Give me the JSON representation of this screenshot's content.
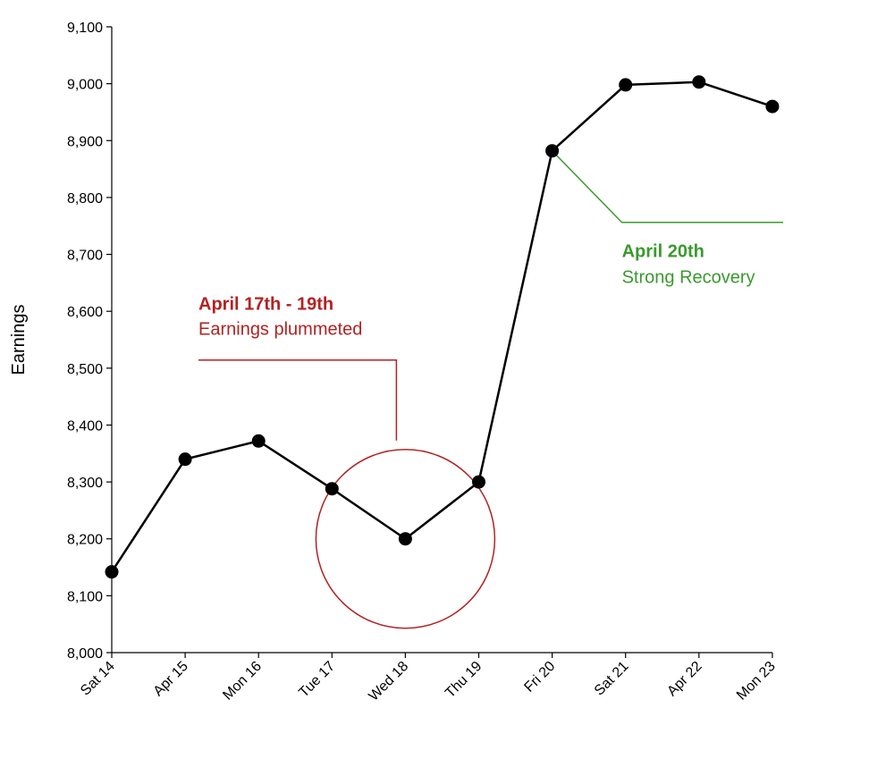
{
  "chart_data": {
    "type": "line",
    "title": "",
    "xlabel": "",
    "ylabel": "Earnings",
    "categories": [
      "Sat 14",
      "Apr 15",
      "Mon 16",
      "Tue 17",
      "Wed 18",
      "Thu 19",
      "Fri 20",
      "Sat 21",
      "Apr 22",
      "Mon 23"
    ],
    "series": [
      {
        "values": [
          8142,
          8340,
          8372,
          8288,
          8200,
          8300,
          8882,
          8998,
          9003,
          8960
        ]
      }
    ],
    "ylim": [
      8000,
      9100
    ],
    "yticks": [
      8000,
      8100,
      8200,
      8300,
      8400,
      8500,
      8600,
      8700,
      8800,
      8900,
      9000,
      9100
    ],
    "ytick_labels": [
      "8,000",
      "8,100",
      "8,200",
      "8,300",
      "8,400",
      "8,500",
      "8,600",
      "8,700",
      "8,800",
      "8,900",
      "9,000",
      "9,100"
    ],
    "grid": false,
    "line_color": "#000000",
    "annotations": [
      {
        "title": "April 17th - 19th",
        "text": "Earnings plummeted",
        "color": "#b22222",
        "target_index": 4,
        "shape": "circle"
      },
      {
        "title": "April 20th",
        "text": "Strong Recovery",
        "color": "#3a9a2e",
        "target_index": 6,
        "shape": "elbow"
      }
    ]
  }
}
